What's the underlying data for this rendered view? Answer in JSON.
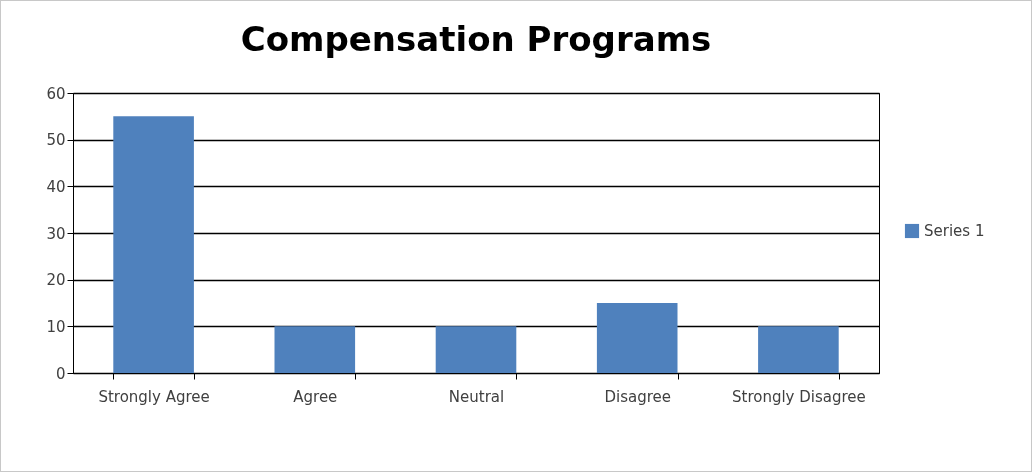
{
  "chart_data": {
    "type": "bar",
    "title": "Compensation Programs",
    "categories": [
      "Strongly Agree",
      "Agree",
      "Neutral",
      "Disagree",
      "Strongly Disagree"
    ],
    "series": [
      {
        "name": "Series 1",
        "color": "#4f81bd",
        "values": [
          55,
          10,
          10,
          15,
          10
        ]
      }
    ],
    "ylim": [
      0,
      60
    ],
    "yticks": [
      0,
      10,
      20,
      30,
      40,
      50,
      60
    ],
    "grid": "y",
    "legend": "right"
  }
}
